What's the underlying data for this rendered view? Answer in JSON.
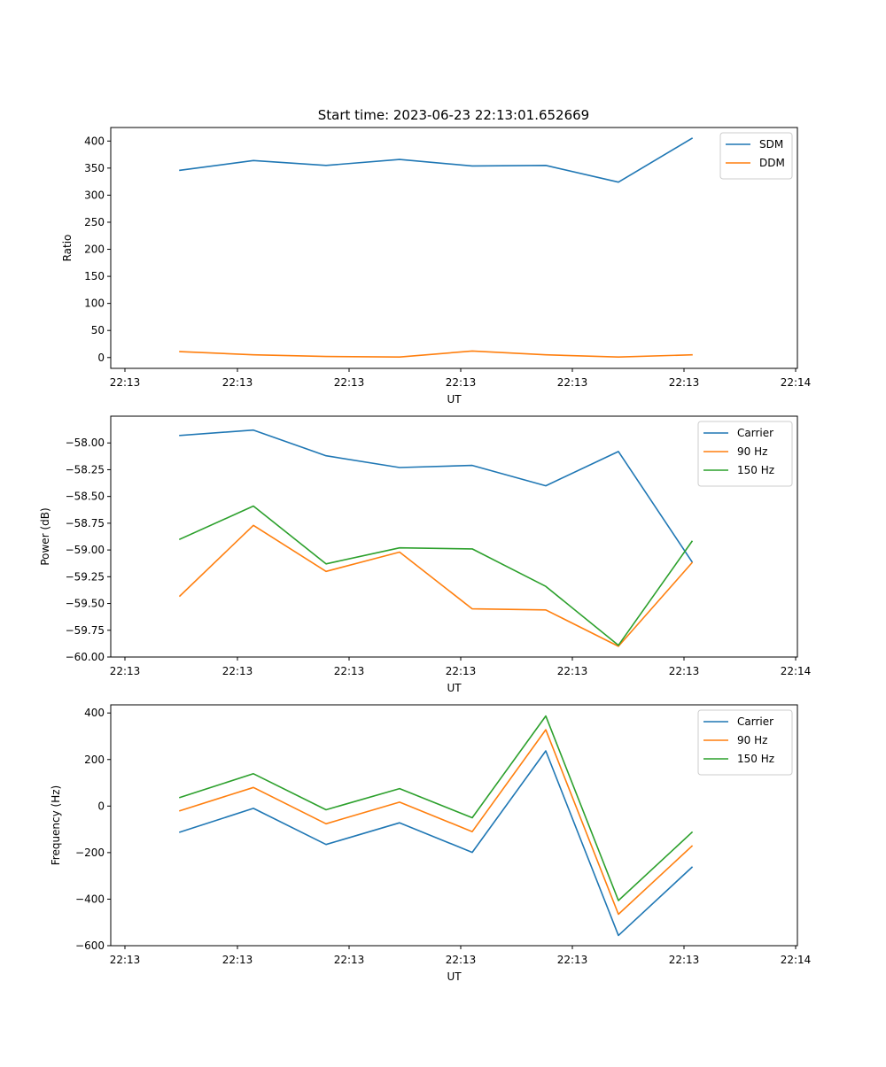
{
  "page": {
    "title": "Start time: 2023-06-23 22:13:01.652669"
  },
  "chart_data": [
    {
      "type": "line",
      "title": "Start time: 2023-06-23 22:13:01.652669",
      "xlabel": "UT",
      "ylabel": "Ratio",
      "x_tick_labels": [
        "22:13",
        "22:13",
        "22:13",
        "22:13",
        "22:13",
        "22:13",
        "22:14"
      ],
      "y_ticks": [
        0,
        50,
        100,
        150,
        200,
        250,
        300,
        350,
        400
      ],
      "y_tick_labels": [
        "0",
        "50",
        "100",
        "150",
        "200",
        "250",
        "300",
        "350",
        "400"
      ],
      "ylim": [
        -20,
        425
      ],
      "legend_position": "upper-right",
      "grid": false,
      "series": [
        {
          "name": "SDM",
          "color": "#1f77b4",
          "values": [
            346,
            364,
            355,
            366,
            354,
            355,
            324,
            405
          ]
        },
        {
          "name": "DDM",
          "color": "#ff7f0e",
          "values": [
            11,
            5,
            2,
            1,
            12,
            5,
            1,
            5
          ]
        }
      ]
    },
    {
      "type": "line",
      "xlabel": "UT",
      "ylabel": "Power (dB)",
      "x_tick_labels": [
        "22:13",
        "22:13",
        "22:13",
        "22:13",
        "22:13",
        "22:13",
        "22:14"
      ],
      "y_ticks": [
        -60.0,
        -59.75,
        -59.5,
        -59.25,
        -59.0,
        -58.75,
        -58.5,
        -58.25,
        -58.0
      ],
      "y_tick_labels": [
        "−60.00",
        "−59.75",
        "−59.50",
        "−59.25",
        "−59.00",
        "−58.75",
        "−58.50",
        "−58.25",
        "−58.00"
      ],
      "ylim": [
        -60.0,
        -57.75
      ],
      "legend_position": "upper-right",
      "grid": false,
      "series": [
        {
          "name": "Carrier",
          "color": "#1f77b4",
          "values": [
            -57.93,
            -57.88,
            -58.12,
            -58.23,
            -58.21,
            -58.4,
            -58.08,
            -59.11
          ]
        },
        {
          "name": "90 Hz",
          "color": "#ff7f0e",
          "values": [
            -59.43,
            -58.77,
            -59.2,
            -59.02,
            -59.55,
            -59.56,
            -59.9,
            -59.12
          ]
        },
        {
          "name": "150 Hz",
          "color": "#2ca02c",
          "values": [
            -58.9,
            -58.59,
            -59.13,
            -58.98,
            -58.99,
            -59.34,
            -59.89,
            -58.92
          ]
        }
      ]
    },
    {
      "type": "line",
      "xlabel": "UT",
      "ylabel": "Frequency (Hz)",
      "x_tick_labels": [
        "22:13",
        "22:13",
        "22:13",
        "22:13",
        "22:13",
        "22:13",
        "22:14"
      ],
      "y_ticks": [
        -600,
        -400,
        -200,
        0,
        200,
        400
      ],
      "y_tick_labels": [
        "−600",
        "−400",
        "−200",
        "0",
        "200",
        "400"
      ],
      "ylim": [
        -600,
        435
      ],
      "legend_position": "upper-right",
      "grid": false,
      "series": [
        {
          "name": "Carrier",
          "color": "#1f77b4",
          "values": [
            -112,
            -10,
            -165,
            -72,
            -199,
            237,
            -556,
            -263
          ]
        },
        {
          "name": "90 Hz",
          "color": "#ff7f0e",
          "values": [
            -20,
            80,
            -76,
            17,
            -110,
            328,
            -465,
            -172
          ]
        },
        {
          "name": "150 Hz",
          "color": "#2ca02c",
          "values": [
            37,
            139,
            -16,
            75,
            -50,
            387,
            -406,
            -113
          ]
        }
      ]
    }
  ]
}
